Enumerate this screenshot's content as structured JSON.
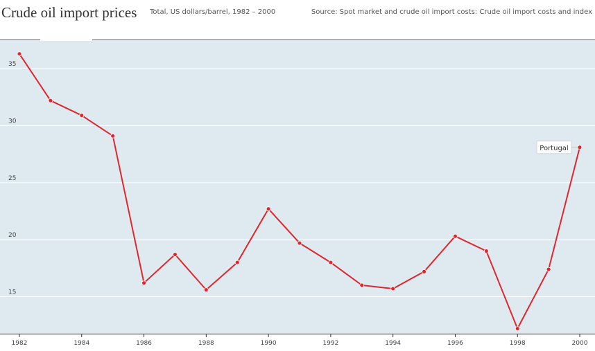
{
  "header": {
    "title": "Crude oil import prices",
    "subtitle": "Total, US dollars/barrel, 1982 – 2000",
    "source_label": "Source:",
    "source_text": "Spot market and crude oil import costs: Crude oil import costs and index"
  },
  "colors": {
    "plot_background": "#dfe9f0",
    "gridline": "#ffffff",
    "series_line": "#e0262c",
    "axis_line": "#333333",
    "header_rule": "#4a7fa8"
  },
  "chart_data": {
    "type": "line",
    "title": "Crude oil import prices",
    "subtitle": "Total, US dollars/barrel, 1982 – 2000",
    "xlabel": "",
    "ylabel": "",
    "x": [
      1982,
      1983,
      1984,
      1985,
      1986,
      1987,
      1988,
      1989,
      1990,
      1991,
      1992,
      1993,
      1994,
      1995,
      1996,
      1997,
      1998,
      1999,
      2000
    ],
    "series": [
      {
        "name": "Portugal",
        "values": [
          36.3,
          32.2,
          30.9,
          29.1,
          16.2,
          18.7,
          15.6,
          18.0,
          22.7,
          19.7,
          18.0,
          16.0,
          15.7,
          17.2,
          20.3,
          19.0,
          12.2,
          17.4,
          28.1
        ]
      }
    ],
    "xlim": [
      1982,
      2000
    ],
    "ylim": [
      11.75,
      37.5
    ],
    "x_ticks": [
      "1982",
      "1984",
      "1986",
      "1988",
      "1990",
      "1992",
      "1994",
      "1996",
      "1998",
      "2000"
    ],
    "y_ticks": [
      "15",
      "20",
      "25",
      "30",
      "35"
    ],
    "grid": true,
    "legend": "none"
  }
}
